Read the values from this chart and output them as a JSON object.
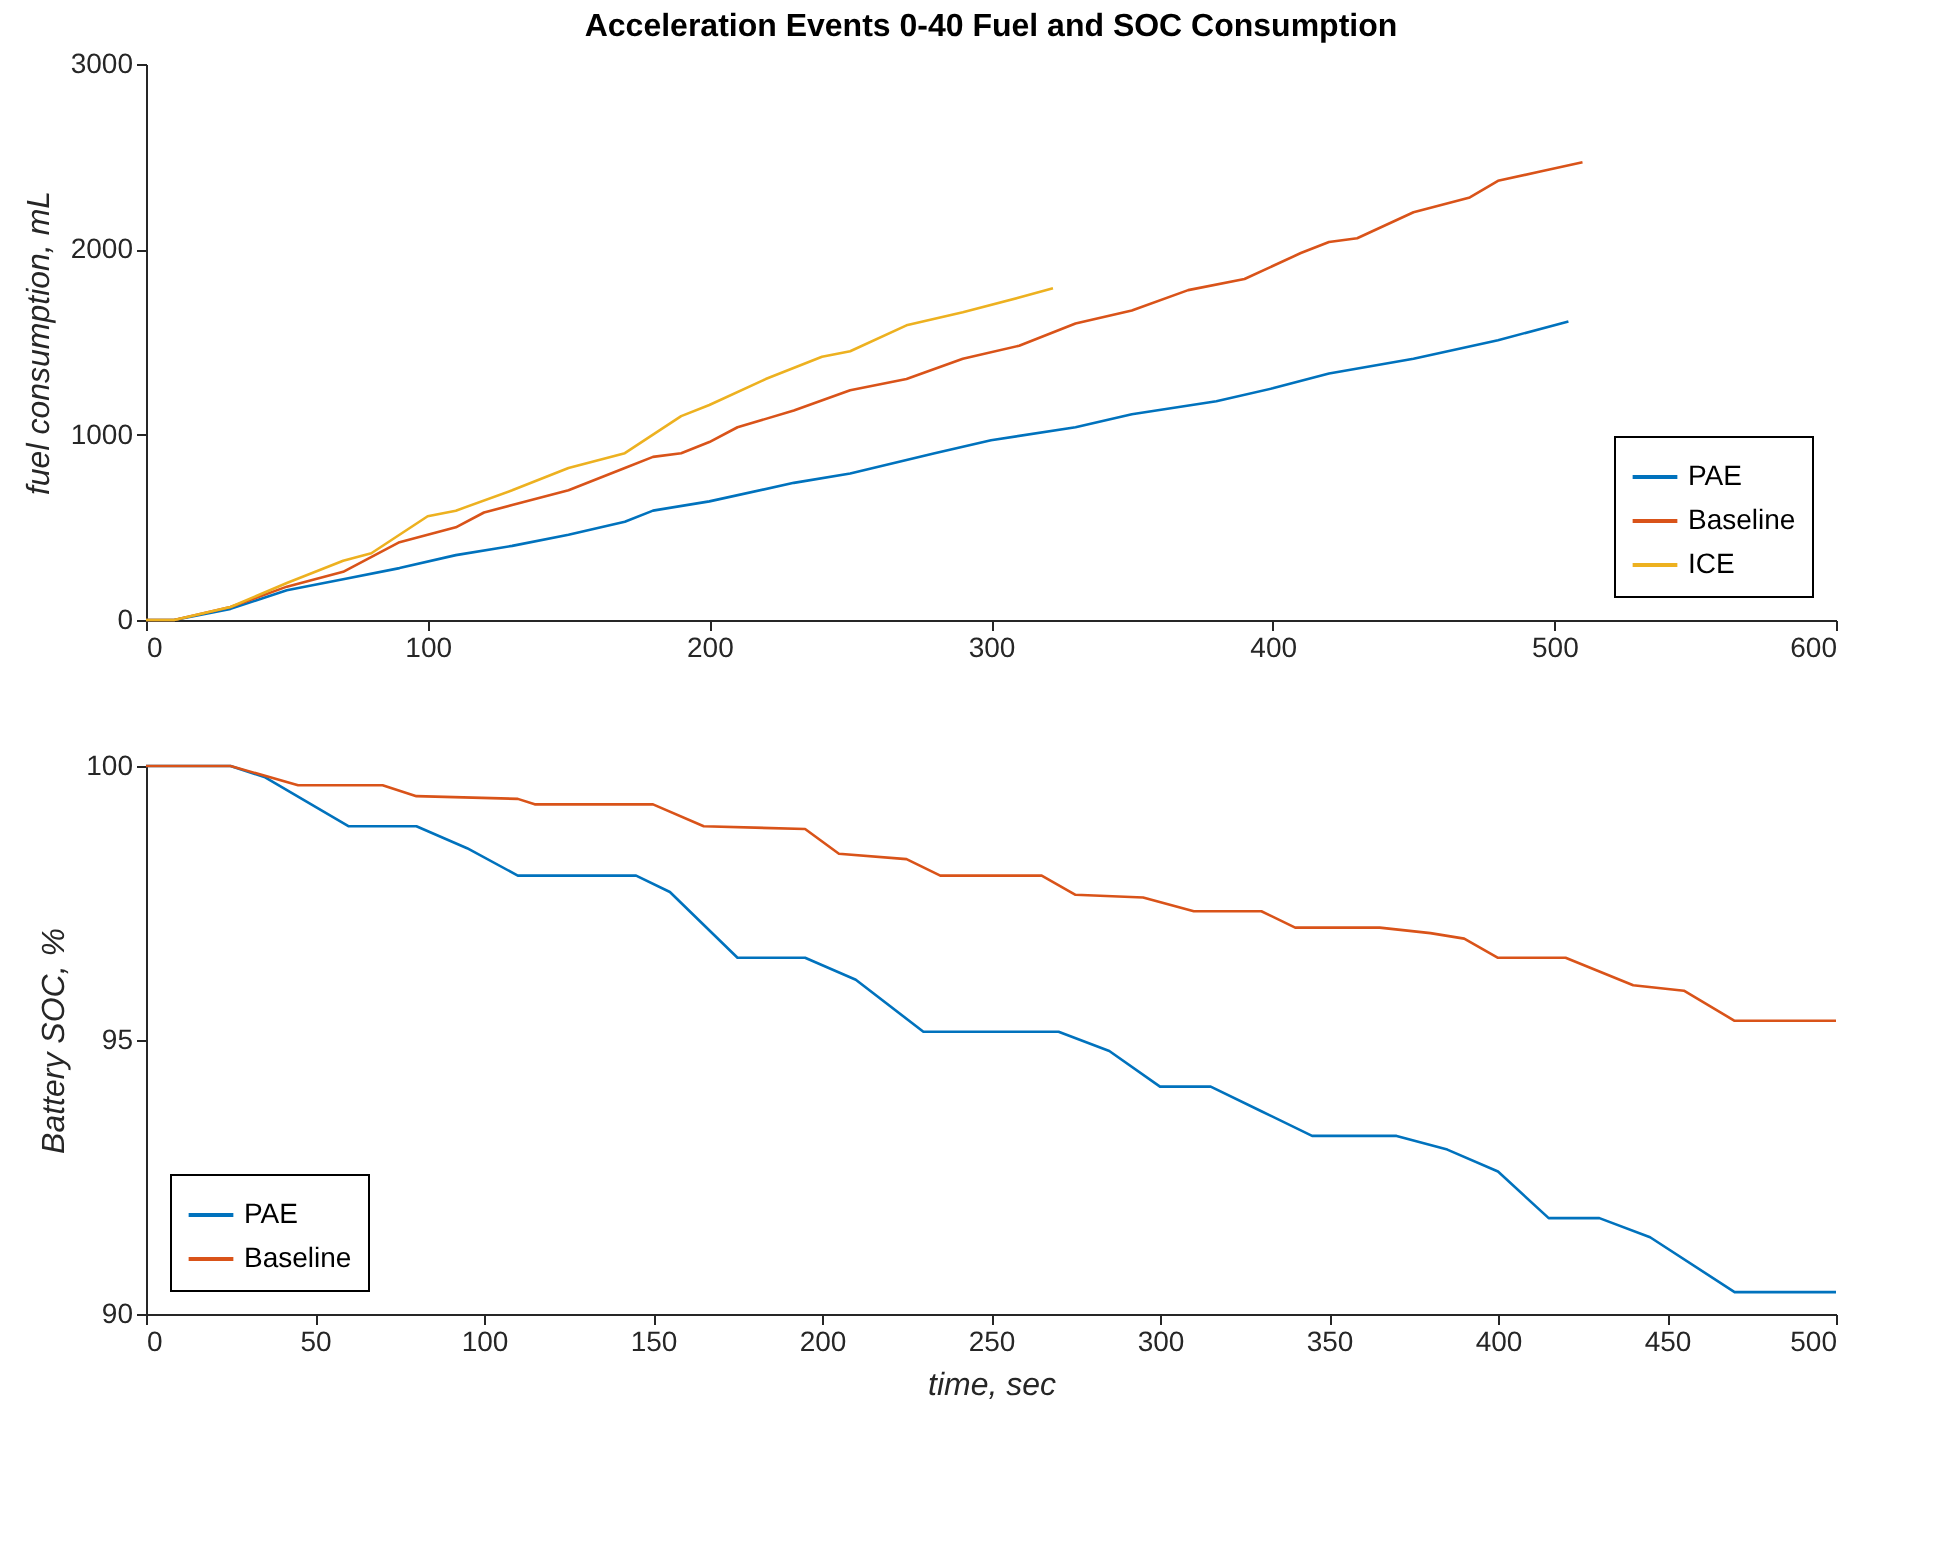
{
  "chart_data": [
    {
      "type": "line",
      "title": "Acceleration Events 0-40 Fuel and SOC Consumption",
      "ylabel": "fuel consumption, mL",
      "xlim": [
        0,
        600
      ],
      "xticks": [
        0,
        100,
        200,
        300,
        400,
        500,
        600
      ],
      "ylim": [
        0,
        3000
      ],
      "yticks": [
        0,
        1000,
        2000,
        3000
      ],
      "grid": false,
      "legend": "bottom right",
      "line_style": "solid",
      "series": [
        {
          "name": "PAE",
          "color": "#0072bd",
          "x": [
            0,
            10,
            30,
            50,
            70,
            90,
            110,
            130,
            150,
            170,
            180,
            200,
            230,
            250,
            280,
            300,
            330,
            350,
            380,
            400,
            420,
            450,
            480,
            505
          ],
          "values": [
            0,
            0,
            60,
            160,
            220,
            280,
            350,
            400,
            460,
            530,
            590,
            640,
            740,
            790,
            900,
            970,
            1040,
            1110,
            1180,
            1250,
            1330,
            1410,
            1510,
            1610
          ]
        },
        {
          "name": "Baseline",
          "color": "#d95319",
          "x": [
            0,
            10,
            30,
            50,
            70,
            90,
            100,
            110,
            120,
            130,
            150,
            170,
            180,
            190,
            200,
            210,
            230,
            250,
            270,
            290,
            310,
            330,
            350,
            370,
            390,
            410,
            420,
            430,
            450,
            470,
            480,
            495,
            510
          ],
          "values": [
            0,
            0,
            70,
            180,
            260,
            420,
            460,
            500,
            580,
            620,
            700,
            820,
            880,
            900,
            960,
            1040,
            1130,
            1240,
            1300,
            1410,
            1480,
            1600,
            1670,
            1780,
            1840,
            1980,
            2040,
            2060,
            2200,
            2280,
            2370,
            2420,
            2470
          ]
        },
        {
          "name": "ICE",
          "color": "#edb120",
          "x": [
            0,
            10,
            30,
            50,
            70,
            80,
            100,
            110,
            130,
            150,
            170,
            190,
            200,
            220,
            240,
            250,
            270,
            290,
            310,
            322
          ],
          "values": [
            0,
            0,
            70,
            200,
            320,
            360,
            560,
            590,
            700,
            820,
            900,
            1100,
            1160,
            1300,
            1420,
            1450,
            1590,
            1660,
            1740,
            1790
          ]
        }
      ]
    },
    {
      "type": "line",
      "xlabel": "time, sec",
      "ylabel": "Battery SOC, %",
      "xlim": [
        0,
        500
      ],
      "xticks": [
        0,
        50,
        100,
        150,
        200,
        250,
        300,
        350,
        400,
        450,
        500
      ],
      "ylim": [
        90,
        100
      ],
      "yticks": [
        90,
        95,
        100
      ],
      "grid": false,
      "legend": "bottom left",
      "line_style": "solid",
      "series": [
        {
          "name": "PAE",
          "color": "#0072bd",
          "x": [
            0,
            25,
            35,
            60,
            80,
            95,
            110,
            145,
            155,
            175,
            195,
            210,
            230,
            270,
            285,
            300,
            315,
            330,
            345,
            370,
            385,
            400,
            415,
            430,
            445,
            470,
            500
          ],
          "values": [
            100,
            100,
            99.8,
            98.9,
            98.9,
            98.5,
            98.0,
            98.0,
            97.7,
            96.5,
            96.5,
            96.1,
            95.15,
            95.15,
            94.8,
            94.15,
            94.15,
            93.7,
            93.25,
            93.25,
            93.0,
            92.6,
            91.75,
            91.75,
            91.4,
            90.4,
            90.4
          ]
        },
        {
          "name": "Baseline",
          "color": "#d95319",
          "x": [
            0,
            25,
            45,
            70,
            80,
            110,
            115,
            150,
            165,
            195,
            205,
            225,
            235,
            265,
            275,
            295,
            310,
            330,
            340,
            365,
            380,
            390,
            400,
            420,
            440,
            455,
            470,
            500
          ],
          "values": [
            100,
            100,
            99.65,
            99.65,
            99.45,
            99.4,
            99.3,
            99.3,
            98.9,
            98.85,
            98.4,
            98.3,
            98.0,
            98.0,
            97.65,
            97.6,
            97.35,
            97.35,
            97.05,
            97.05,
            96.95,
            96.85,
            96.5,
            96.5,
            96.0,
            95.9,
            95.35,
            95.35
          ]
        }
      ]
    }
  ]
}
